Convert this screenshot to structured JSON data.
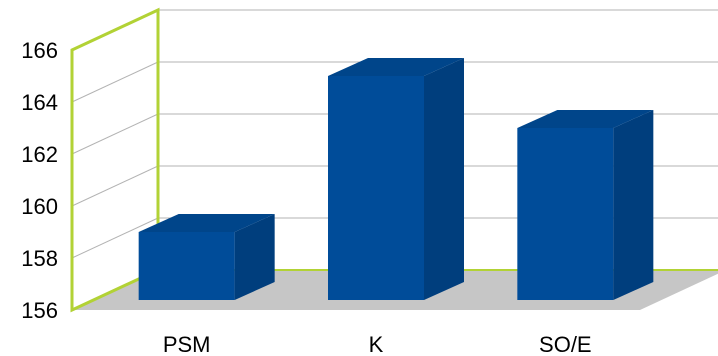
{
  "chart_data": {
    "type": "bar",
    "style": "3d-column",
    "categories": [
      "PSM",
      "K",
      "SO/E"
    ],
    "values": [
      159,
      165,
      163
    ],
    "ylim": [
      156,
      166
    ],
    "yticks": [
      156,
      158,
      160,
      162,
      164,
      166
    ],
    "ytick_labels": [
      "156",
      "158",
      "160",
      "162",
      "164",
      "166"
    ],
    "title": "",
    "xlabel": "",
    "ylabel": "",
    "grid": true,
    "legend": "none"
  },
  "colors": {
    "bar_front": "#004C99",
    "bar_side": "#003E7D",
    "bar_top": "#00458A",
    "wall_edge": "#B2D235",
    "floor": "#C6C6C6",
    "grid": "#B3B3B3"
  }
}
